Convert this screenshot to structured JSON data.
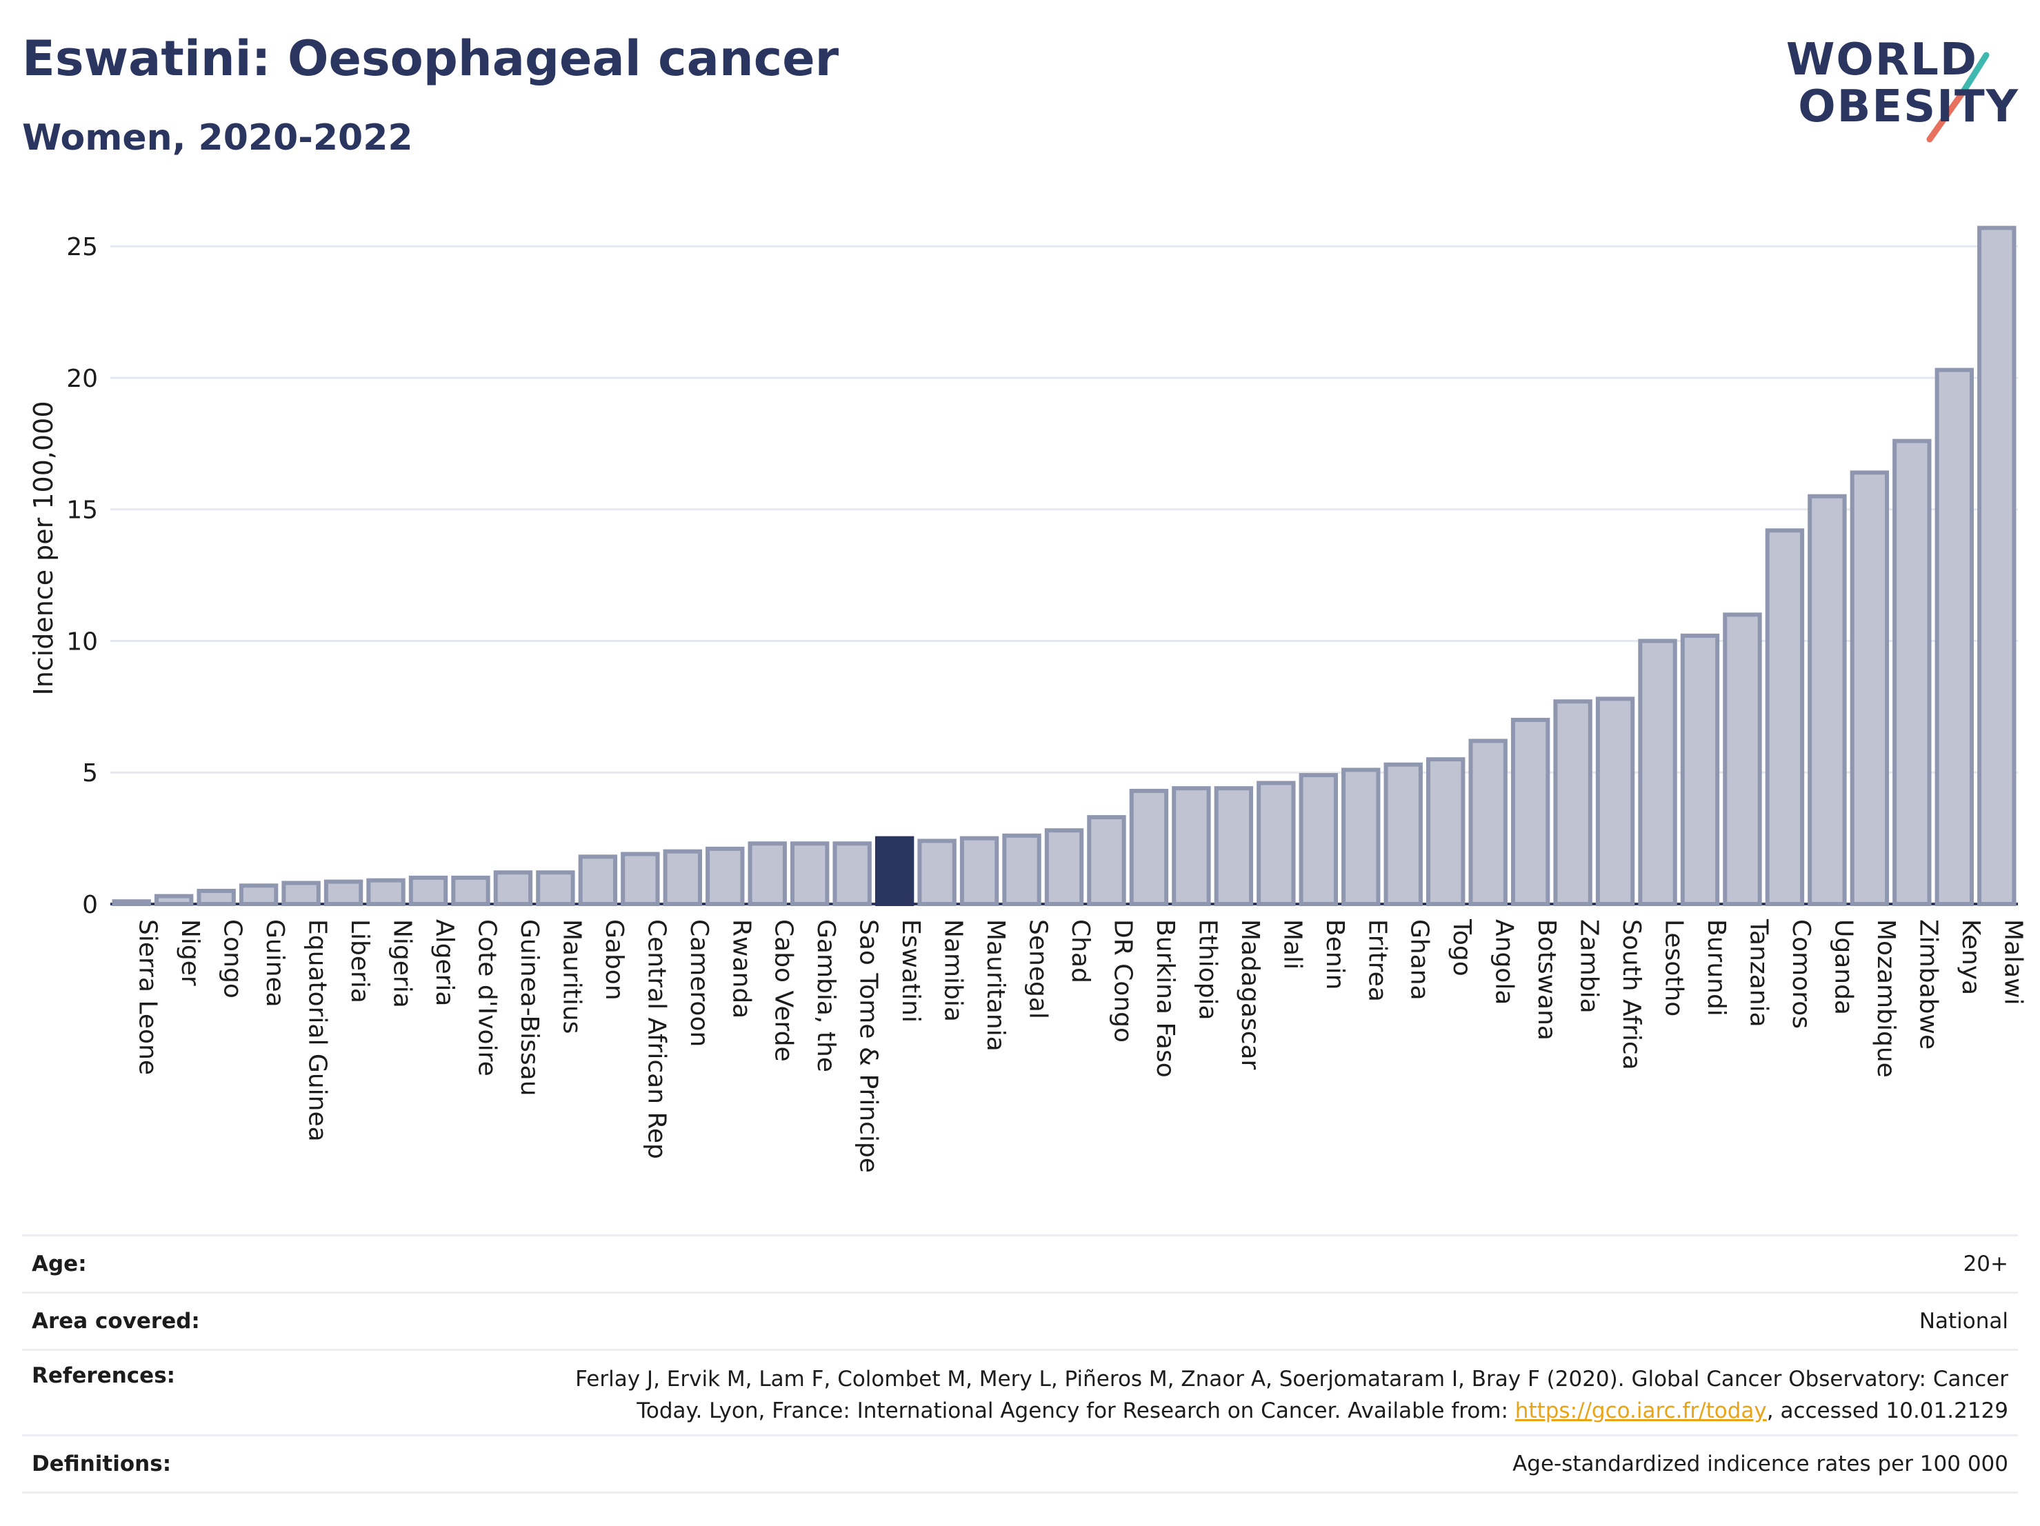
{
  "header": {
    "title": "Eswatini: Oesophageal cancer",
    "subtitle": "Women, 2020-2022"
  },
  "logo": {
    "line1": "WORLD",
    "line2": "OBESITY"
  },
  "colors": {
    "bar": "#bfc3d2",
    "bar_border": "#8f96b0",
    "highlight": "#2b3660",
    "grid": "#e6e8ef",
    "text": "#1c1c1c",
    "title": "#2b3660"
  },
  "chart_data": {
    "type": "bar",
    "ylabel": "Incidence per 100,000",
    "xlabel": "",
    "ylim": [
      0,
      26.5
    ],
    "yticks": [
      0,
      5,
      10,
      15,
      20,
      25
    ],
    "grid": true,
    "highlight": "Eswatini",
    "categories": [
      "Sierra Leone",
      "Niger",
      "Congo",
      "Guinea",
      "Equatorial Guinea",
      "Liberia",
      "Nigeria",
      "Algeria",
      "Cote d'Ivoire",
      "Guinea-Bissau",
      "Mauritius",
      "Gabon",
      "Central African Rep",
      "Cameroon",
      "Rwanda",
      "Cabo Verde",
      "Gambia, the",
      "Sao Tome & Principe",
      "Eswatini",
      "Namibia",
      "Mauritania",
      "Senegal",
      "Chad",
      "DR Congo",
      "Burkina Faso",
      "Ethiopia",
      "Madagascar",
      "Mali",
      "Benin",
      "Eritrea",
      "Ghana",
      "Togo",
      "Angola",
      "Botswana",
      "Zambia",
      "South Africa",
      "Lesotho",
      "Burundi",
      "Tanzania",
      "Comoros",
      "Uganda",
      "Mozambique",
      "Zimbabwe",
      "Kenya",
      "Malawi"
    ],
    "values": [
      0.1,
      0.3,
      0.5,
      0.7,
      0.8,
      0.85,
      0.9,
      1.0,
      1.0,
      1.2,
      1.2,
      1.8,
      1.9,
      2.0,
      2.1,
      2.3,
      2.3,
      2.3,
      2.5,
      2.4,
      2.5,
      2.6,
      2.8,
      3.3,
      4.3,
      4.4,
      4.4,
      4.6,
      4.9,
      5.1,
      5.3,
      5.5,
      6.2,
      7.0,
      7.7,
      7.8,
      10.0,
      10.2,
      11.0,
      14.2,
      15.5,
      16.4,
      17.6,
      20.3,
      25.7
    ]
  },
  "info": {
    "age": {
      "label": "Age:",
      "value": "20+"
    },
    "area": {
      "label": "Area covered:",
      "value": "National"
    },
    "references": {
      "label": "References:",
      "text_before": "Ferlay J, Ervik M, Lam F, Colombet M, Mery L, Piñeros M, Znaor A, Soerjomataram I, Bray F (2020). Global Cancer Observatory: Cancer Today. Lyon, France: International Agency for Research on Cancer. Available from: ",
      "link": "https://gco.iarc.fr/today",
      "text_after": ", accessed 10.01.2129"
    },
    "definitions": {
      "label": "Definitions:",
      "value": "Age-standardized indicence rates per 100 000"
    }
  }
}
